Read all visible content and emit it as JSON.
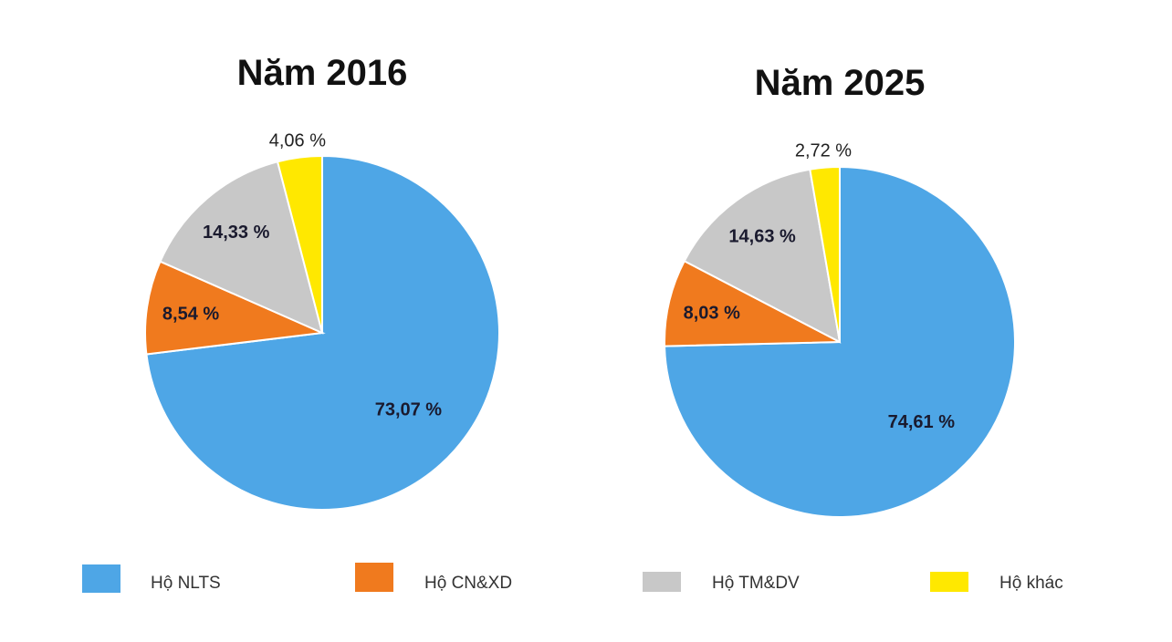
{
  "chart_data": [
    {
      "type": "pie",
      "title": "Năm 2016",
      "categories": [
        "Hộ NLTS",
        "Hộ CN&XD",
        "Hộ TM&DV",
        "Hộ khác"
      ],
      "values": [
        73.07,
        8.54,
        14.33,
        4.06
      ],
      "labels": [
        "73,07 %",
        "8,54 %",
        "14,33 %",
        "4,06 %"
      ]
    },
    {
      "type": "pie",
      "title": "Năm 2025",
      "categories": [
        "Hộ NLTS",
        "Hộ CN&XD",
        "Hộ TM&DV",
        "Hộ khác"
      ],
      "values": [
        74.61,
        8.03,
        14.63,
        2.72
      ],
      "labels": [
        "74,61 %",
        "8,03 %",
        "14,63 %",
        "2,72 %"
      ]
    }
  ],
  "legend": {
    "position": "bottom",
    "items": [
      {
        "label": "Hộ NLTS",
        "color": "#4EA6E6"
      },
      {
        "label": "Hộ CN&XD",
        "color": "#F07A1E"
      },
      {
        "label": "Hộ TM&DV",
        "color": "#C8C8C8"
      },
      {
        "label": "Hộ khác",
        "color": "#FFE800"
      }
    ]
  }
}
